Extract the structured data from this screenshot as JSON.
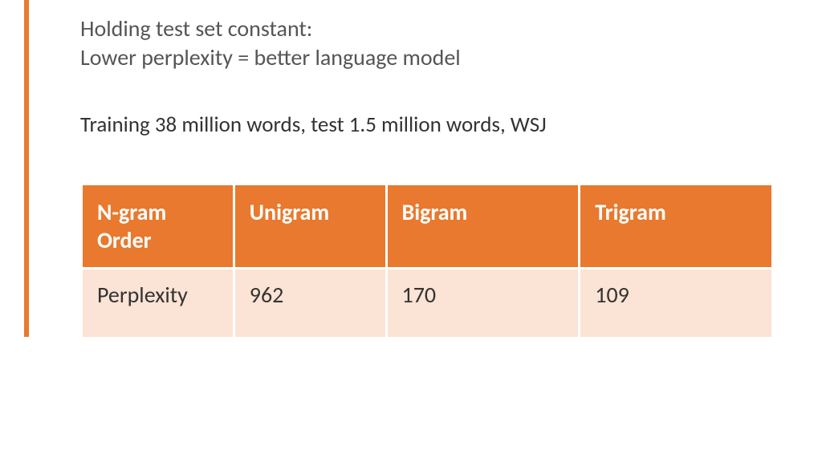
{
  "heading_line1": "Holding test set constant:",
  "heading_line2": "Lower perplexity = better language model",
  "subheading": "Training 38 million words, test 1.5 million words, WSJ",
  "table": {
    "header_bg": "#e8792e",
    "header_color": "#ffffff",
    "row_bg": "#fbe3d5",
    "row_color": "#333333",
    "columns": [
      "N-gram Order",
      "Unigram",
      "Bigram",
      "Trigram"
    ],
    "rows": [
      [
        "Perplexity",
        "962",
        "170",
        "109"
      ]
    ]
  },
  "accent_bar_color": "#e8792e"
}
